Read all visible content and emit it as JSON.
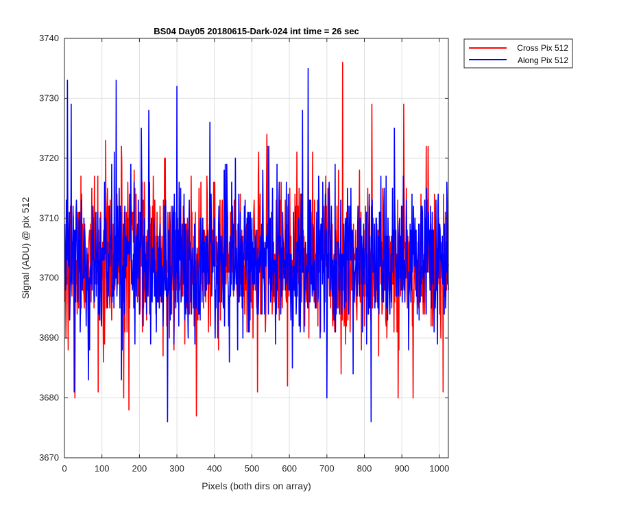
{
  "chart_data": {
    "type": "line",
    "title": "BS04 Day05 20180615-Dark-024 int time = 26 sec",
    "xlabel": "Pixels (both dirs on array)",
    "ylabel": "Signal (ADU) @ pix 512",
    "xlim": [
      0,
      1024
    ],
    "ylim": [
      3670,
      3740
    ],
    "xticks": [
      0,
      100,
      200,
      300,
      400,
      500,
      600,
      700,
      800,
      900,
      1000
    ],
    "yticks": [
      3670,
      3680,
      3690,
      3700,
      3710,
      3720,
      3730,
      3740
    ],
    "grid": true,
    "legend_position": "outside-top-right",
    "series": [
      {
        "name": "Cross Pix 512",
        "color": "#ff0000",
        "x_range": [
          1,
          1024
        ],
        "mean": 3703,
        "spread": 6,
        "min": 3677,
        "max": 3736,
        "noise_seed": 11,
        "spikes": [
          [
            10,
            3688
          ],
          [
            28,
            3680
          ],
          [
            90,
            3681
          ],
          [
            110,
            3723
          ],
          [
            152,
            3722
          ],
          [
            158,
            3680
          ],
          [
            172,
            3678
          ],
          [
            352,
            3677
          ],
          [
            380,
            3717
          ],
          [
            515,
            3681
          ],
          [
            620,
            3721
          ],
          [
            650,
            3724
          ],
          [
            738,
            3684
          ],
          [
            742,
            3736
          ],
          [
            820,
            3729
          ],
          [
            890,
            3680
          ],
          [
            905,
            3729
          ],
          [
            930,
            3680
          ],
          [
            965,
            3722
          ],
          [
            1010,
            3681
          ]
        ]
      },
      {
        "name": "Along Pix 512",
        "color": "#0000ff",
        "x_range": [
          1,
          1024
        ],
        "mean": 3703,
        "spread": 6,
        "min": 3676,
        "max": 3735,
        "noise_seed": 29,
        "spikes": [
          [
            8,
            3733
          ],
          [
            18,
            3729
          ],
          [
            26,
            3681
          ],
          [
            138,
            3733
          ],
          [
            152,
            3683
          ],
          [
            205,
            3725
          ],
          [
            225,
            3728
          ],
          [
            275,
            3676
          ],
          [
            300,
            3732
          ],
          [
            388,
            3726
          ],
          [
            440,
            3686
          ],
          [
            545,
            3722
          ],
          [
            635,
            3728
          ],
          [
            650,
            3735
          ],
          [
            700,
            3680
          ],
          [
            770,
            3684
          ],
          [
            818,
            3676
          ],
          [
            880,
            3725
          ],
          [
            935,
            3710
          ],
          [
            1020,
            3716
          ]
        ]
      }
    ]
  }
}
